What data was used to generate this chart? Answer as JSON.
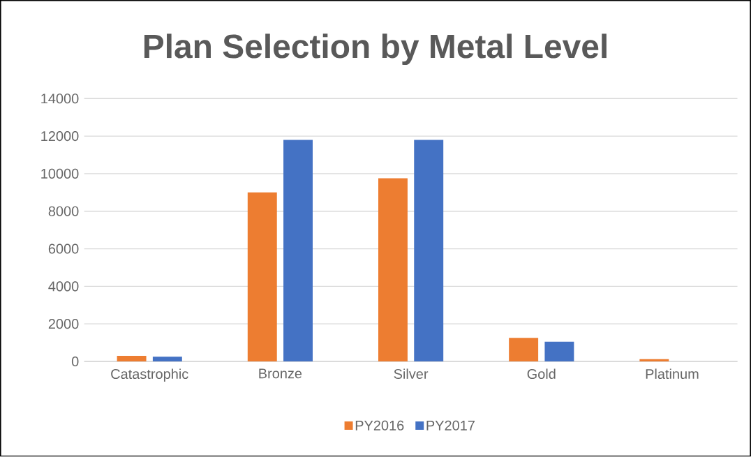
{
  "chart_data": {
    "type": "bar",
    "title": "Plan Selection by Metal Level",
    "categories": [
      "Catastrophic",
      "Bronze",
      "Silver",
      "Gold",
      "Platinum"
    ],
    "series": [
      {
        "name": "PY2016",
        "color": "#ed7d31",
        "values": [
          300,
          9000,
          9750,
          1250,
          120
        ]
      },
      {
        "name": "PY2017",
        "color": "#4472c4",
        "values": [
          250,
          11800,
          11800,
          1050,
          null
        ]
      }
    ],
    "ylim": [
      0,
      14000
    ],
    "yticks": [
      0,
      2000,
      4000,
      6000,
      8000,
      10000,
      12000,
      14000
    ],
    "grid": "y",
    "legend": "bottom"
  }
}
